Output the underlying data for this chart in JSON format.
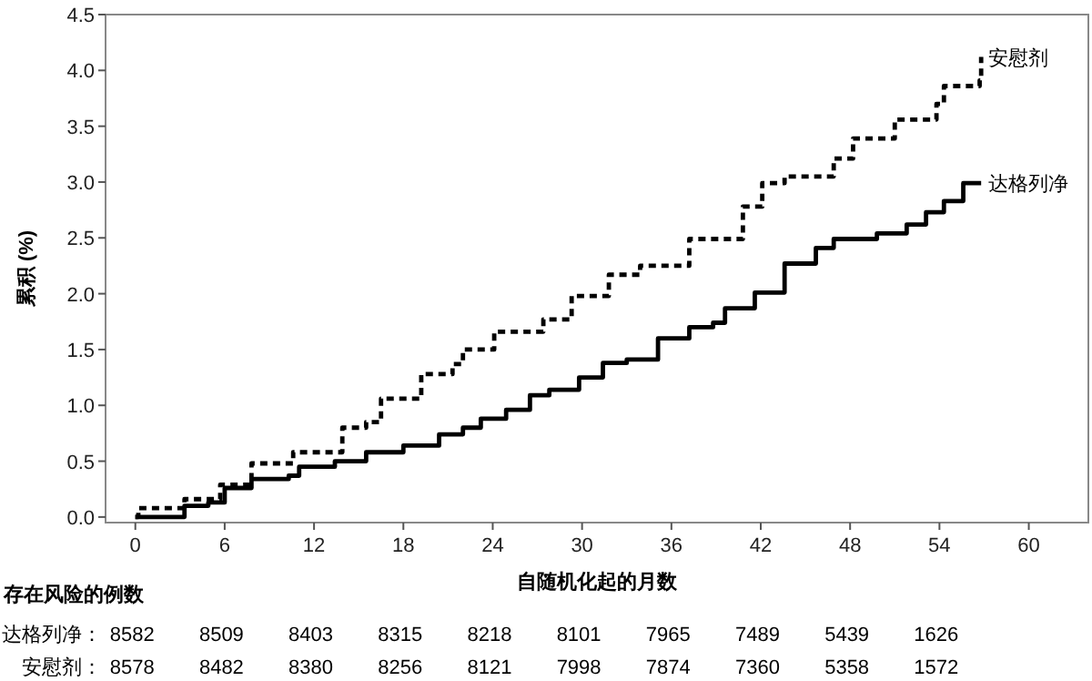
{
  "chart_data": {
    "type": "step",
    "xlabel": "自随机化起的月数",
    "ylabel": "累积 (%)",
    "xlim": [
      -2,
      64
    ],
    "ylim": [
      -0.05,
      4.5
    ],
    "xticks": [
      0,
      6,
      12,
      18,
      24,
      30,
      36,
      42,
      48,
      54,
      60
    ],
    "yticks": [
      {
        "value": 0,
        "label": "0.0"
      },
      {
        "value": 0.5,
        "label": "0.5"
      },
      {
        "value": 1,
        "label": "1.0"
      },
      {
        "value": 1.5,
        "label": "1.5"
      },
      {
        "value": 2,
        "label": "2.0"
      },
      {
        "value": 2.5,
        "label": "2.5"
      },
      {
        "value": 3,
        "label": "3.0"
      },
      {
        "value": 3.5,
        "label": "3.5"
      },
      {
        "value": 4,
        "label": "4.0"
      },
      {
        "value": 4.5,
        "label": "4.5"
      }
    ],
    "series": [
      {
        "name": "安慰剂",
        "color": "#000000",
        "line_style": "dashed",
        "x": [
          0,
          0.2,
          3.3,
          5.7,
          7.8,
          10.6,
          13.9,
          15.5,
          16.5,
          19.2,
          21.3,
          22.0,
          24.1,
          27.4,
          29.3,
          31.8,
          33.9,
          37.2,
          40.8,
          42.1,
          43.6,
          46.9,
          48.2,
          49.8,
          51,
          53.8,
          54.3,
          56.7,
          56.8
        ],
        "values": [
          0,
          0.08,
          0.16,
          0.29,
          0.48,
          0.58,
          0.8,
          0.85,
          1.06,
          1.28,
          1.37,
          1.5,
          1.66,
          1.77,
          1.98,
          2.17,
          2.25,
          2.49,
          2.78,
          2.99,
          3.05,
          3.21,
          3.39,
          3.39,
          3.56,
          3.7,
          3.86,
          3.91,
          4.12
        ]
      },
      {
        "name": "达格列净",
        "color": "#000000",
        "line_style": "solid",
        "x": [
          0,
          3.3,
          4.9,
          6.0,
          7.8,
          10.3,
          11,
          13.4,
          15.5,
          18,
          20.4,
          22,
          23.2,
          24.9,
          26.5,
          27.8,
          29.8,
          31.4,
          33,
          35.1,
          37.2,
          38.8,
          39.6,
          41.6,
          43.6,
          45.7,
          46.9,
          49.8,
          51.8,
          53.1,
          54.3,
          55.6,
          56.8
        ],
        "values": [
          0,
          0.1,
          0.13,
          0.26,
          0.34,
          0.37,
          0.45,
          0.5,
          0.58,
          0.64,
          0.74,
          0.8,
          0.88,
          0.96,
          1.09,
          1.14,
          1.25,
          1.38,
          1.41,
          1.6,
          1.7,
          1.74,
          1.87,
          2.01,
          2.27,
          2.41,
          2.49,
          2.54,
          2.62,
          2.73,
          2.83,
          2.99,
          2.99
        ]
      }
    ],
    "annotations": [
      "存在风险的例数",
      "达格列净：",
      "8582",
      "8509",
      "8403",
      "8315",
      "8218",
      "8101",
      "7965",
      "7489",
      "5439",
      "1626",
      "安慰剂：",
      "8578",
      "8482",
      "8380",
      "8256",
      "8121",
      "7998",
      "7874",
      "7360",
      "5358",
      "1572"
    ]
  }
}
